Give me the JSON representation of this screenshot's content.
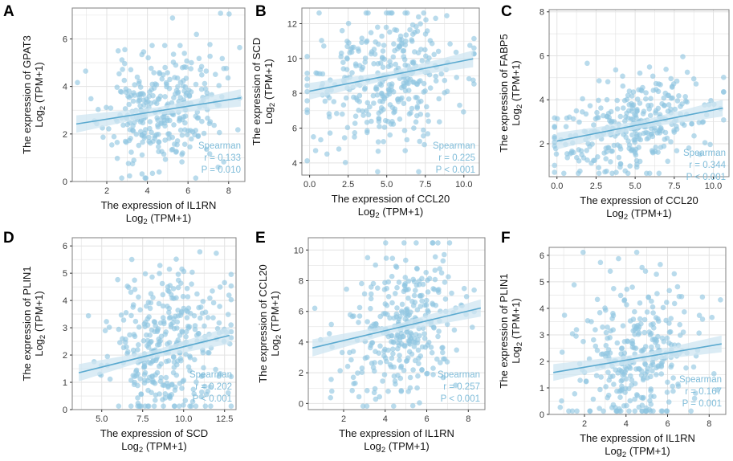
{
  "colors": {
    "point": "#8ec5e0",
    "line": "#5aa9cf",
    "band": "#cfe6f2",
    "stat": "#7fbcd9",
    "grid": "#e2e2e2",
    "frame": "#7f7f7f"
  },
  "chart_data": [
    {
      "panel": "A",
      "type": "scatter",
      "xlabel": "The expression of IL1RN",
      "ylabel": "The expression of GPAT3",
      "log_label": "Log2 (TPM+1)",
      "xlim": [
        0.3,
        8.8
      ],
      "ylim": [
        0,
        7.3
      ],
      "xticks": [
        2,
        4,
        6,
        8
      ],
      "yticks": [
        0,
        2,
        4,
        6
      ],
      "fit": {
        "x": [
          0.5,
          8.6
        ],
        "y": [
          2.42,
          3.52
        ]
      },
      "stats": {
        "method": "Spearman",
        "r": "r = 0.133",
        "p": "P = 0.010"
      },
      "points": {
        "n": 330,
        "x_mean": 4.7,
        "x_sd": 1.4,
        "y_mean": 2.95,
        "y_sd": 1.25,
        "r": 0.13,
        "seed": 11
      }
    },
    {
      "panel": "B",
      "type": "scatter",
      "xlabel": "The expression of CCL20",
      "ylabel": "The expression of SCD",
      "log_label": "Log2 (TPM+1)",
      "xlim": [
        -0.5,
        11
      ],
      "ylim": [
        3.3,
        12.9
      ],
      "xticks": [
        0.0,
        2.5,
        5.0,
        7.5,
        10.0
      ],
      "yticks": [
        4,
        6,
        8,
        10,
        12
      ],
      "fit": {
        "x": [
          0,
          10.6
        ],
        "y": [
          8.12,
          9.98
        ]
      },
      "stats": {
        "method": "Spearman",
        "r": "r = 0.225",
        "p": "P < 0.001"
      },
      "points": {
        "n": 350,
        "x_mean": 5.0,
        "x_sd": 2.5,
        "y_mean": 8.9,
        "y_sd": 1.9,
        "r": 0.23,
        "seed": 22
      }
    },
    {
      "panel": "C",
      "type": "scatter",
      "xlabel": "The expression of CCL20",
      "ylabel": "The expression of FABP5",
      "log_label": "Log2 (TPM+1)",
      "xlim": [
        -0.5,
        11
      ],
      "ylim": [
        0.5,
        8.1
      ],
      "xticks": [
        0.0,
        2.5,
        5.0,
        7.5,
        10.0
      ],
      "yticks": [
        2,
        4,
        6,
        8
      ],
      "fit": {
        "x": [
          0,
          10.6
        ],
        "y": [
          2.12,
          3.62
        ]
      },
      "stats": {
        "method": "Spearman",
        "r": "r = 0.344",
        "p": "P < 0.001"
      },
      "points": {
        "n": 340,
        "x_mean": 4.8,
        "x_sd": 2.5,
        "y_mean": 2.8,
        "y_sd": 1.1,
        "r": 0.34,
        "seed": 33
      }
    },
    {
      "panel": "D",
      "type": "scatter",
      "xlabel": "The expression of SCD",
      "ylabel": "The expression of PLIN1",
      "log_label": "Log2 (TPM+1)",
      "xlim": [
        3.2,
        13.2
      ],
      "ylim": [
        0,
        6.3
      ],
      "xticks": [
        5.0,
        7.5,
        10.0,
        12.5
      ],
      "yticks": [
        0,
        1,
        2,
        3,
        4,
        5,
        6
      ],
      "fit": {
        "x": [
          3.6,
          12.8
        ],
        "y": [
          1.35,
          2.72
        ]
      },
      "stats": {
        "method": "Spearman",
        "r": "r = 0.202",
        "p": "P < 0.001"
      },
      "points": {
        "n": 360,
        "x_mean": 9.0,
        "x_sd": 1.9,
        "y_mean": 2.2,
        "y_sd": 1.35,
        "r": 0.2,
        "seed": 44
      }
    },
    {
      "panel": "E",
      "type": "scatter",
      "xlabel": "The expression of IL1RN",
      "ylabel": "The expression of CCL20",
      "log_label": "Log2 (TPM+1)",
      "xlim": [
        0.3,
        8.8
      ],
      "ylim": [
        -0.4,
        10.8
      ],
      "xticks": [
        2,
        4,
        6,
        8
      ],
      "yticks": [
        0,
        2,
        4,
        6,
        8,
        10
      ],
      "fit": {
        "x": [
          0.5,
          8.6
        ],
        "y": [
          3.62,
          6.22
        ]
      },
      "stats": {
        "method": "Spearman",
        "r": "r = 0.257",
        "p": "P < 0.001"
      },
      "points": {
        "n": 340,
        "x_mean": 4.8,
        "x_sd": 1.4,
        "y_mean": 4.8,
        "y_sd": 2.4,
        "r": 0.26,
        "seed": 55
      }
    },
    {
      "panel": "F",
      "type": "scatter",
      "xlabel": "The expression of IL1RN",
      "ylabel": "The expression of PLIN1",
      "log_label": "Log2 (TPM+1)",
      "xlim": [
        0.3,
        8.8
      ],
      "ylim": [
        0,
        6.3
      ],
      "xticks": [
        2,
        4,
        6,
        8
      ],
      "yticks": [
        0,
        1,
        2,
        3,
        4,
        5,
        6
      ],
      "fit": {
        "x": [
          0.5,
          8.6
        ],
        "y": [
          1.58,
          2.66
        ]
      },
      "stats": {
        "method": "Spearman",
        "r": "r = 0.167",
        "p": "P = 0.001"
      },
      "points": {
        "n": 330,
        "x_mean": 4.7,
        "x_sd": 1.4,
        "y_mean": 2.2,
        "y_sd": 1.35,
        "r": 0.17,
        "seed": 66
      }
    }
  ]
}
